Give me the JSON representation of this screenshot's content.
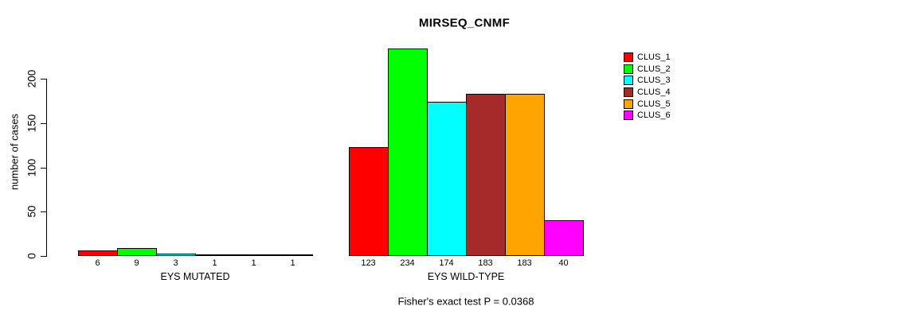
{
  "figure": {
    "title": "MIRSEQ_CNMF",
    "y_axis": {
      "label": "number of cases",
      "ticks": [
        0,
        50,
        100,
        150,
        200
      ]
    },
    "footer": "Fisher's exact test P = 0.0368"
  },
  "legend": {
    "items": [
      {
        "label": "CLUS_1",
        "color": "#FF0000"
      },
      {
        "label": "CLUS_2",
        "color": "#00FF00"
      },
      {
        "label": "CLUS_3",
        "color": "#00FFFF"
      },
      {
        "label": "CLUS_4",
        "color": "#A52A2A"
      },
      {
        "label": "CLUS_5",
        "color": "#FFA500"
      },
      {
        "label": "CLUS_6",
        "color": "#FF00FF"
      }
    ]
  },
  "chart_data": {
    "type": "bar",
    "title": "MIRSEQ_CNMF",
    "ylabel": "number of cases",
    "ylim": [
      0,
      200
    ],
    "grid": false,
    "legend_position": "right",
    "series": [
      "CLUS_1",
      "CLUS_2",
      "CLUS_3",
      "CLUS_4",
      "CLUS_5",
      "CLUS_6"
    ],
    "series_colors": [
      "#FF0000",
      "#00FF00",
      "#00FFFF",
      "#A52A2A",
      "#FFA500",
      "#FF00FF"
    ],
    "groups": [
      {
        "label": "EYS MUTATED",
        "values": [
          6,
          9,
          3,
          1,
          1,
          1
        ]
      },
      {
        "label": "EYS WILD-TYPE",
        "values": [
          123,
          234,
          174,
          183,
          183,
          40
        ]
      }
    ],
    "annotation": "Fisher's exact test P = 0.0368"
  }
}
